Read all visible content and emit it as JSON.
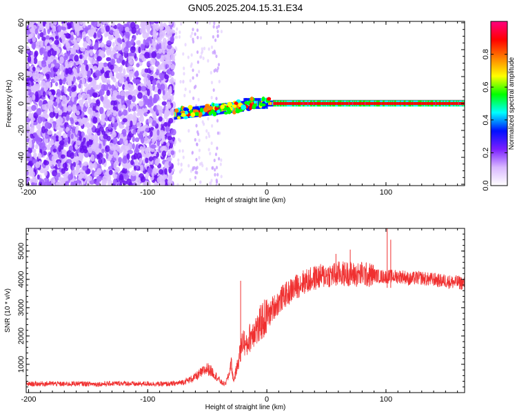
{
  "title": "GN05.2025.204.15.31.E34",
  "chart_data": [
    {
      "type": "heatmap",
      "xlabel": "Height of straight line (km)",
      "ylabel": "Frequency (Hz)",
      "xlim": [
        -202,
        166
      ],
      "ylim": [
        -61,
        61
      ],
      "x_ticks": [
        "-200",
        "-100",
        "0",
        "100"
      ],
      "y_ticks": [
        "-60",
        "-40",
        "-20",
        "0",
        "20",
        "40",
        "60"
      ],
      "colorbar": {
        "label": "Normalized spectral amplitude",
        "range": [
          0,
          1
        ],
        "ticks": [
          "0.0",
          "0.2",
          "0.4",
          "0.6",
          "0.8"
        ],
        "colormap": [
          "#ffffff",
          "#d9b8ff",
          "#7a1fff",
          "#0010ff",
          "#00ffff",
          "#00ff00",
          "#ffff00",
          "#ff8000",
          "#ff0000",
          "#ff0080"
        ]
      },
      "features": {
        "noise_region_km": [
          -202,
          -78
        ],
        "sparse_region_km": [
          -78,
          -38
        ],
        "onset_km": -78,
        "signal_start_freq_hz": -8,
        "signal_end_freq_hz": 0
      }
    },
    {
      "type": "line",
      "xlabel": "Height of straight line (km)",
      "ylabel": "SNR (10 * v/v)",
      "xlim": [
        -202,
        166
      ],
      "ylim": [
        0,
        5800
      ],
      "x_ticks": [
        "-200",
        "-100",
        "0",
        "100"
      ],
      "y_ticks": [
        "1000",
        "2000",
        "3000",
        "4000",
        "5000"
      ],
      "color": "#f03030",
      "series": [
        {
          "x": [
            -202,
            -190,
            -180,
            -170,
            -160,
            -150,
            -140,
            -130,
            -120,
            -110,
            -100,
            -90,
            -80,
            -75,
            -70,
            -65,
            -60,
            -55,
            -50,
            -45,
            -40,
            -38,
            -35,
            -32,
            -30,
            -28,
            -25,
            -22,
            -20,
            -17,
            -15,
            -12,
            -10,
            -7,
            -5,
            -2,
            0,
            3,
            5,
            8,
            10,
            13,
            15,
            18,
            20,
            25,
            30,
            35,
            40,
            45,
            50,
            55,
            60,
            65,
            70,
            75,
            80,
            85,
            90,
            95,
            100,
            105,
            110,
            115,
            120,
            125,
            130,
            135,
            140,
            145,
            150,
            155,
            160,
            166
          ],
          "y": [
            300,
            310,
            320,
            300,
            320,
            310,
            300,
            320,
            330,
            300,
            320,
            300,
            310,
            330,
            380,
            450,
            550,
            700,
            850,
            700,
            450,
            350,
            300,
            600,
            1100,
            400,
            900,
            1500,
            1900,
            1600,
            1900,
            2100,
            2300,
            2200,
            2500,
            2600,
            2700,
            2800,
            3000,
            3100,
            3200,
            3350,
            3450,
            3500,
            3600,
            3750,
            3900,
            3950,
            4050,
            4100,
            4150,
            4150,
            4200,
            4200,
            4200,
            4150,
            4200,
            4150,
            4150,
            4100,
            4100,
            4100,
            4100,
            4100,
            4000,
            4050,
            4050,
            4000,
            4000,
            3950,
            3950,
            3900,
            3900,
            3850
          ]
        }
      ],
      "annotations": {
        "spikes": [
          {
            "x": -22,
            "y": 3950
          },
          {
            "x": 58,
            "y": 4900
          },
          {
            "x": 70,
            "y": 5050
          },
          {
            "x": 101,
            "y": 5800
          },
          {
            "x": 104,
            "y": 5400
          }
        ]
      }
    }
  ]
}
